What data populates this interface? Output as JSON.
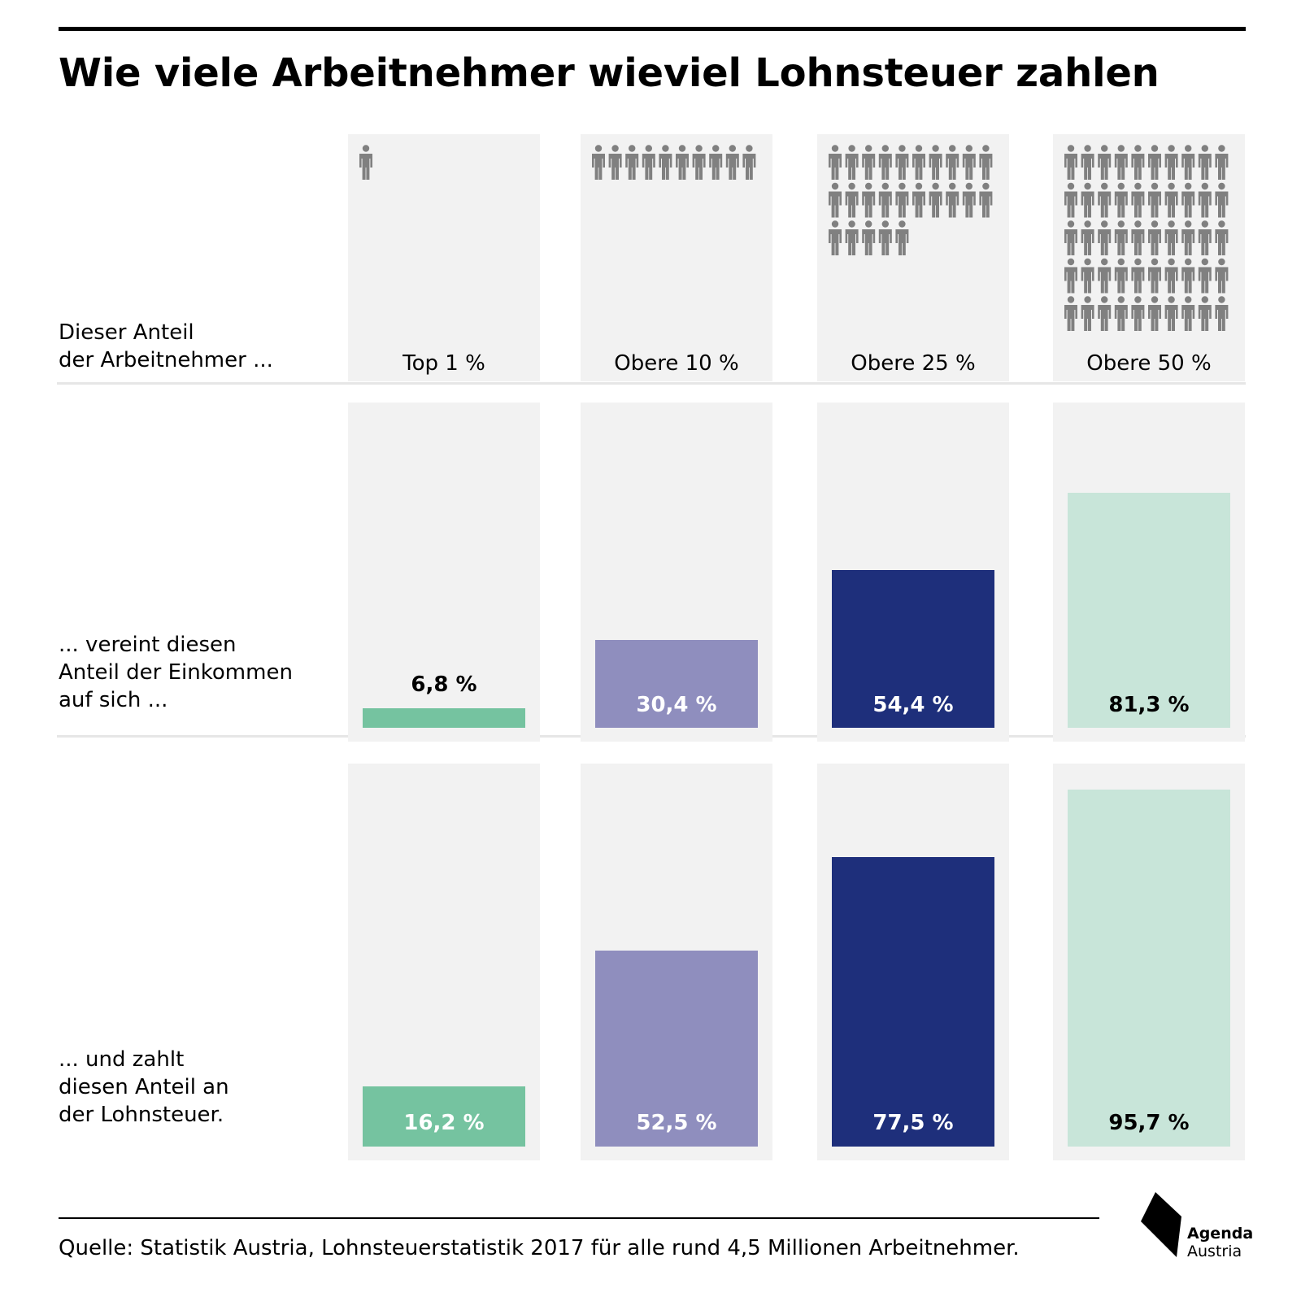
{
  "title": "Wie viele Arbeitnehmer wieviel Lohnsteuer zahlen",
  "row_labels": {
    "row1": "Dieser Anteil\nder Arbeitnehmer ...",
    "row2": "... vereint diesen\nAnteil der Einkommen\nauf sich  ...",
    "row3": "... und zahlt\ndiesen Anteil an\nder Lohnsteuer."
  },
  "colors": {
    "panel": "#f2f2f2",
    "icon": "#808080",
    "top1": "#75c3a0",
    "top10": "#8f8ebe",
    "top25": "#1e2f7b",
    "top50": "#c8e5d9",
    "label_light": "#ffffff",
    "label_dark": "#000000"
  },
  "chart_data": {
    "type": "bar",
    "categories": [
      "Top 1 %",
      "Obere 10 %",
      "Obere 25 %",
      "Obere 50 %"
    ],
    "people_icons": [
      1,
      10,
      25,
      50
    ],
    "series": [
      {
        "name": "Anteil der Einkommen",
        "values": [
          6.8,
          30.4,
          54.4,
          81.3
        ],
        "labels": [
          "6,8 %",
          "30,4 %",
          "54,4 %",
          "81,3 %"
        ]
      },
      {
        "name": "Anteil an der Lohnsteuer",
        "values": [
          16.2,
          52.5,
          77.5,
          95.7
        ],
        "labels": [
          "16,2 %",
          "52,5 %",
          "77,5 %",
          "95,7 %"
        ]
      }
    ],
    "ylim": [
      0,
      100
    ]
  },
  "source": "Quelle: Statistik Austria, Lohnsteuerstatistik 2017 für alle rund 4,5 Millionen Arbeitnehmer.",
  "logo": {
    "line1": "Agenda",
    "line2": "Austria"
  }
}
